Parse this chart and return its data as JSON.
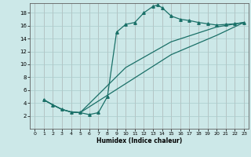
{
  "title": "",
  "xlabel": "Humidex (Indice chaleur)",
  "background_color": "#cce8e8",
  "grid_color": "#aacccc",
  "line_color": "#1a7068",
  "xlim": [
    -0.5,
    23.5
  ],
  "ylim": [
    0,
    19.5
  ],
  "xticks": [
    0,
    1,
    2,
    3,
    4,
    5,
    6,
    7,
    8,
    9,
    10,
    11,
    12,
    13,
    14,
    15,
    16,
    17,
    18,
    19,
    20,
    21,
    22,
    23
  ],
  "yticks": [
    2,
    4,
    6,
    8,
    10,
    12,
    14,
    16,
    18
  ],
  "line1_x": [
    1,
    2,
    3,
    4,
    5,
    6,
    7,
    8,
    9,
    10,
    11,
    12,
    13,
    13.5,
    14,
    15,
    16,
    17,
    18,
    19,
    20,
    21,
    22,
    23
  ],
  "line1_y": [
    4.5,
    3.7,
    3.0,
    2.6,
    2.5,
    2.2,
    2.5,
    5.0,
    15.0,
    16.2,
    16.5,
    18.0,
    19.0,
    19.2,
    18.8,
    17.5,
    17.0,
    16.8,
    16.5,
    16.3,
    16.1,
    16.2,
    16.3,
    16.5
  ],
  "line2_x": [
    1,
    2,
    3,
    4,
    5,
    10,
    15,
    20,
    23
  ],
  "line2_y": [
    4.5,
    3.7,
    3.0,
    2.6,
    2.5,
    7.0,
    11.5,
    14.5,
    16.5
  ],
  "line3_x": [
    1,
    2,
    3,
    4,
    5,
    10,
    15,
    20,
    23
  ],
  "line3_y": [
    4.5,
    3.7,
    3.0,
    2.6,
    2.5,
    9.5,
    13.5,
    15.8,
    16.5
  ]
}
